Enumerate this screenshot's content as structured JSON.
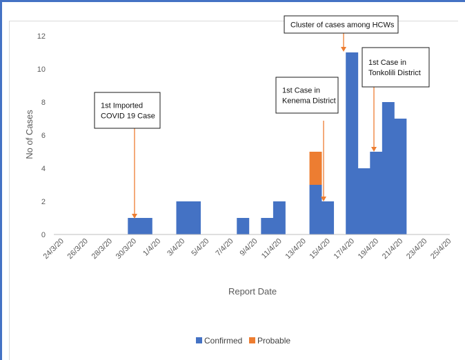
{
  "chart_data": {
    "type": "bar",
    "stacked": true,
    "xlabel": "Report Date",
    "ylabel": "No of Cases",
    "ylim": [
      0,
      12
    ],
    "yticks": [
      0,
      2,
      4,
      6,
      8,
      10,
      12
    ],
    "grid": false,
    "legend_position": "bottom",
    "x_tick_labels": [
      "24/3/20",
      "26/3/20",
      "28/3/20",
      "30/3/20",
      "1/4/20",
      "3/4/20",
      "5/4/20",
      "7/4/20",
      "9/4/20",
      "11/4/20",
      "13/4/20",
      "15/4/20",
      "17/4/20",
      "19/4/20",
      "21/4/20",
      "23/4/20",
      "25/4/20"
    ],
    "bars": [
      {
        "date": "30/3/20",
        "confirmed": 1,
        "probable": 0
      },
      {
        "date": "31/3/20",
        "confirmed": 1,
        "probable": 0
      },
      {
        "date": "3/4/20",
        "confirmed": 2,
        "probable": 0
      },
      {
        "date": "4/4/20",
        "confirmed": 2,
        "probable": 0
      },
      {
        "date": "8/4/20",
        "confirmed": 1,
        "probable": 0
      },
      {
        "date": "10/4/20",
        "confirmed": 1,
        "probable": 0
      },
      {
        "date": "11/4/20",
        "confirmed": 2,
        "probable": 0
      },
      {
        "date": "14/4/20",
        "confirmed": 3,
        "probable": 2
      },
      {
        "date": "15/4/20",
        "confirmed": 2,
        "probable": 0
      },
      {
        "date": "17/4/20",
        "confirmed": 11,
        "probable": 0
      },
      {
        "date": "18/4/20",
        "confirmed": 4,
        "probable": 0
      },
      {
        "date": "19/4/20",
        "confirmed": 5,
        "probable": 0
      },
      {
        "date": "20/4/20",
        "confirmed": 8,
        "probable": 0
      },
      {
        "date": "21/4/20",
        "confirmed": 7,
        "probable": 0
      }
    ],
    "series": [
      {
        "name": "Confirmed",
        "color": "#4472c4"
      },
      {
        "name": "Probable",
        "color": "#ed7d31"
      }
    ],
    "annotations": [
      {
        "lines": [
          "1st Imported",
          "COVID 19 Case"
        ],
        "date": "30/3/20"
      },
      {
        "lines": [
          "1st Case in",
          "Kenema District"
        ],
        "date": "15/4/20"
      },
      {
        "lines": [
          "Cluster of cases among HCWs"
        ],
        "date": "17/4/20"
      },
      {
        "lines": [
          "1st Case in",
          "Tonkolili District"
        ],
        "date": "19/4/20"
      }
    ]
  }
}
